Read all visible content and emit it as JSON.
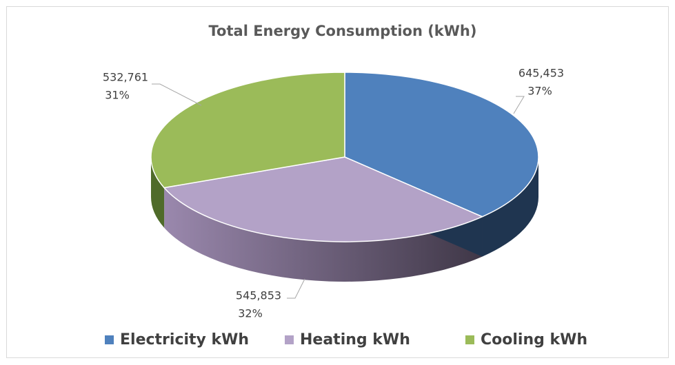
{
  "chart_data": {
    "type": "pie",
    "title": "Total Energy Consumption  (kWh)",
    "categories": [
      "Electricity kWh",
      "Heating kWh",
      "Cooling kWh"
    ],
    "values": [
      645453,
      545853,
      532761
    ],
    "value_labels": [
      "645,453",
      "545,853",
      "532,761"
    ],
    "percents": [
      37,
      32,
      31
    ],
    "percent_labels": [
      "37%",
      "32%",
      "31%"
    ],
    "colors": [
      "#4f81bd",
      "#b3a2c7",
      "#9bbb59"
    ],
    "side_colors": [
      "#1f3550",
      "#4f4358",
      "#4f6b2a"
    ],
    "legend": "bottom"
  }
}
